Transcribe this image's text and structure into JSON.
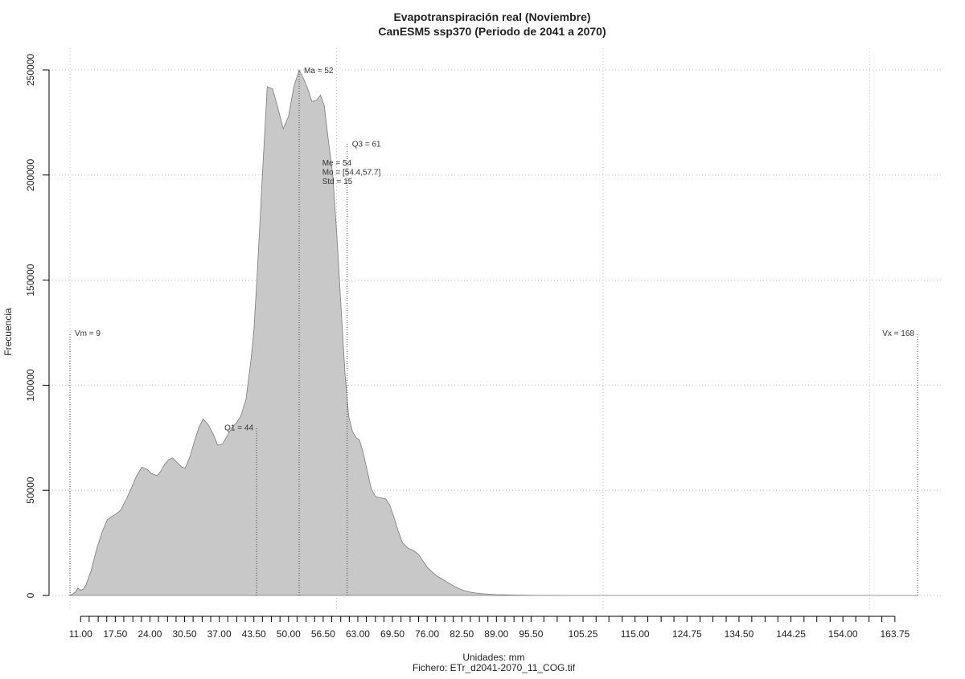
{
  "chart_data": {
    "type": "area",
    "title": "Evapotranspiración real (Noviembre)",
    "subtitle": "CanESM5 ssp370 (Periodo de 2041 a 2070)",
    "xlabel": "Unidades: mm",
    "ylabel": "Frecuencia",
    "footer": "Fichero: ETr_d2041-2070_11_COG.tif",
    "xlim": [
      9,
      168
    ],
    "ylim": [
      0,
      250000
    ],
    "yticks": [
      0,
      50000,
      100000,
      150000,
      200000,
      250000
    ],
    "ytick_labels": [
      "0",
      "50000",
      "100000",
      "150000",
      "200000",
      "250000"
    ],
    "xticks": [
      11,
      17.5,
      24,
      30.5,
      37,
      43.5,
      50,
      56.5,
      63,
      69.5,
      76,
      82.5,
      89,
      95.5,
      105.25,
      115,
      124.75,
      134.5,
      144.25,
      154,
      163.75
    ],
    "xtick_labels": [
      "11.00",
      "17.50",
      "24.00",
      "30.50",
      "37.00",
      "43.50",
      "50.00",
      "56.50",
      "63.00",
      "69.50",
      "76.00",
      "82.50",
      "89.00",
      "95.50",
      "105.25",
      "115.00",
      "124.75",
      "134.50",
      "144.25",
      "154.00",
      "163.75"
    ],
    "minor_xticks": [
      12.6,
      14.3,
      15.9,
      19.1,
      20.8,
      22.4,
      25.6,
      27.3,
      28.9,
      32.1,
      33.8,
      35.4,
      38.6,
      40.3,
      41.9,
      45.1,
      46.8,
      48.4,
      51.6,
      53.3,
      54.9,
      58.1,
      59.8,
      61.4,
      64.6,
      66.3,
      67.9,
      71.1,
      72.8,
      74.4,
      77.6,
      79.3,
      80.9,
      84.1,
      85.8,
      87.4,
      90.6,
      92.3,
      93.9,
      97.9,
      100.4,
      102.8,
      107.7,
      110.1,
      112.6,
      117.4,
      119.9,
      122.3,
      127.2,
      129.6,
      132.1,
      136.9,
      139.4,
      141.8,
      146.7,
      149.1,
      151.6,
      156.4,
      158.9,
      161.3
    ],
    "grid": true,
    "grid_x": [
      9,
      59,
      109,
      159
    ],
    "grid_y": [
      0,
      50000,
      100000,
      150000,
      200000,
      250000
    ],
    "fill_color": "#c8c8c8",
    "line_color": "#7a7a7a",
    "series": [
      {
        "x": [
          9,
          10,
          10.5,
          11,
          11.5,
          12,
          13,
          14,
          15,
          16,
          16.8,
          17.5,
          18.5,
          19.5,
          20.5,
          21.5,
          22.5,
          23.5,
          24.3,
          25.3,
          26,
          26.8,
          27.5,
          28.2,
          29,
          30,
          30.6,
          31.5,
          32.3,
          33.2,
          34,
          35,
          36,
          36.7,
          37.6,
          38.5,
          39.4,
          40.2,
          41,
          42,
          43,
          43.5,
          44.2,
          45.1,
          46,
          47,
          48,
          49,
          50,
          51,
          52,
          52.8,
          53.6,
          54.4,
          55.2,
          56,
          56.7,
          57.5,
          58.3,
          59.1,
          59.9,
          60.6,
          61.3,
          62,
          62.7,
          63.3,
          64,
          64.7,
          65.5,
          66.3,
          67.2,
          68.2,
          69,
          69.8,
          70.6,
          71.4,
          72.4,
          73.4,
          74.4,
          75.2,
          76,
          77,
          78,
          79,
          80,
          81,
          82,
          83,
          84,
          85,
          86,
          87.5,
          89,
          90.5,
          92,
          93.5,
          95,
          96.5,
          98,
          100,
          102,
          104,
          106,
          110,
          115,
          125,
          135,
          145,
          155,
          165,
          168
        ],
        "y": [
          0,
          1500,
          3500,
          2500,
          3000,
          5000,
          12000,
          22000,
          30000,
          36000,
          37500,
          38500,
          40500,
          45500,
          51000,
          57000,
          61000,
          60000,
          58000,
          57000,
          59000,
          62500,
          64500,
          65500,
          63500,
          61000,
          60500,
          66000,
          73000,
          80000,
          84000,
          81000,
          76000,
          71500,
          72000,
          76000,
          80000,
          82000,
          85000,
          93000,
          113000,
          126000,
          156000,
          200000,
          242000,
          241000,
          232000,
          222000,
          228000,
          242000,
          250000,
          246000,
          241000,
          235000,
          235500,
          238000,
          233000,
          216000,
          200000,
          170000,
          135000,
          105000,
          85000,
          78000,
          75000,
          74000,
          68000,
          60000,
          51000,
          47000,
          46500,
          46000,
          43000,
          37000,
          30500,
          25000,
          22500,
          21500,
          19500,
          16500,
          13500,
          11000,
          9000,
          7500,
          6000,
          4500,
          3200,
          2300,
          1600,
          1200,
          900,
          600,
          400,
          300,
          200,
          120,
          80,
          50,
          30,
          20,
          10,
          5,
          3,
          2,
          0,
          0,
          0,
          0,
          0,
          0,
          0
        ]
      }
    ],
    "markers": [
      {
        "name": "Vm",
        "label": "Vm = 9",
        "x": 9,
        "height": 125000,
        "anchor": "right"
      },
      {
        "name": "Q1",
        "label": "Q1 = 44",
        "x": 44,
        "height": 80000,
        "anchor": "left"
      },
      {
        "name": "Ma",
        "label": "Ma = 52",
        "x": 52,
        "height": 250000,
        "anchor": "right"
      },
      {
        "name": "Q3",
        "label": "Q3 = 61",
        "x": 61,
        "height": 215000,
        "anchor": "right"
      },
      {
        "name": "Vx",
        "label": "Vx = 168",
        "x": 168,
        "height": 125000,
        "anchor": "left"
      }
    ],
    "stats": [
      "Me = 54",
      "Mo = [54.4,57.7]",
      "Std = 15"
    ]
  }
}
